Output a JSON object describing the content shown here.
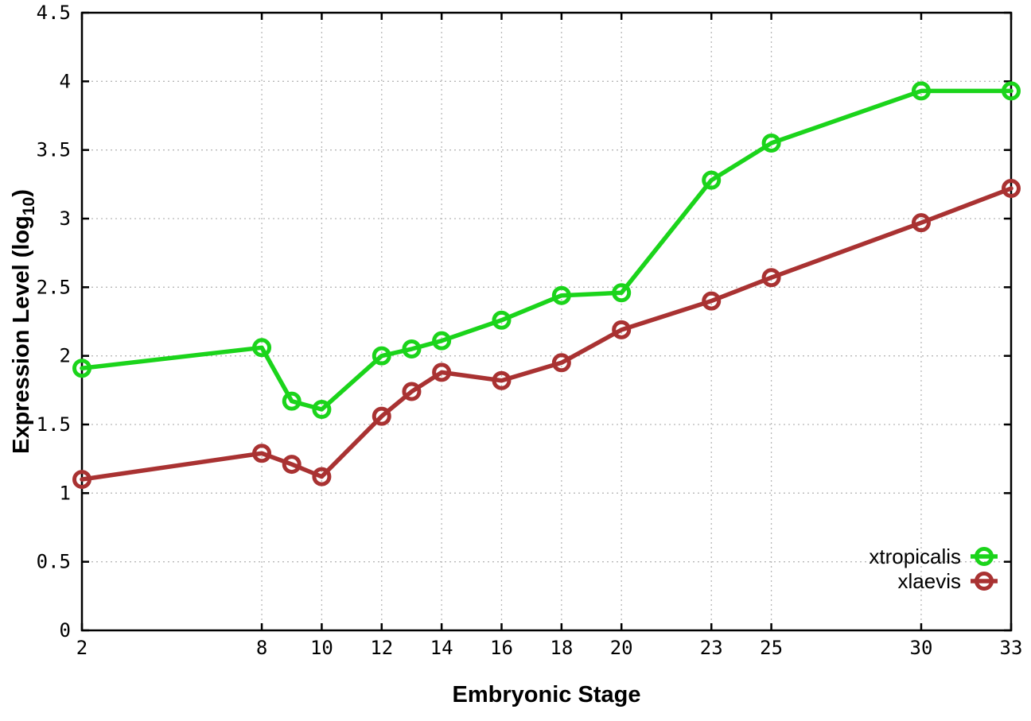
{
  "figure": {
    "background_color": "#ffffff",
    "border_color": "#000000",
    "grid_color": "#b8b8b8",
    "grid_on": true
  },
  "chart_data": {
    "type": "line",
    "title": "",
    "xlabel": "Embryonic Stage",
    "ylabel": "Expression Level (log10)",
    "ylabel_parts": {
      "prefix": "Expression Level (log",
      "sub": "10",
      "suffix": ")"
    },
    "x": [
      2,
      8,
      9,
      10,
      12,
      13,
      14,
      16,
      18,
      20,
      23,
      25,
      30,
      33
    ],
    "series": [
      {
        "name": "xtropicalis",
        "color": "#1bd41b",
        "marker": "open-circle",
        "values": [
          1.91,
          2.06,
          1.67,
          1.61,
          2.0,
          2.05,
          2.11,
          2.26,
          2.44,
          2.46,
          3.28,
          3.55,
          3.93,
          3.93
        ]
      },
      {
        "name": "xlaevis",
        "color": "#a93232",
        "marker": "open-circle",
        "values": [
          1.1,
          1.29,
          1.21,
          1.12,
          1.56,
          1.74,
          1.88,
          1.82,
          1.95,
          2.19,
          2.4,
          2.57,
          2.97,
          3.22
        ]
      }
    ],
    "xlim": [
      2,
      33
    ],
    "ylim": [
      0,
      4.5
    ],
    "xticks": [
      2,
      8,
      10,
      12,
      14,
      16,
      18,
      20,
      23,
      25,
      30,
      33
    ],
    "yticks": [
      0,
      0.5,
      1,
      1.5,
      2,
      2.5,
      3,
      3.5,
      4,
      4.5
    ],
    "legend_position": "bottom-right",
    "legend_entries": [
      "xtropicalis",
      "xlaevis"
    ]
  }
}
